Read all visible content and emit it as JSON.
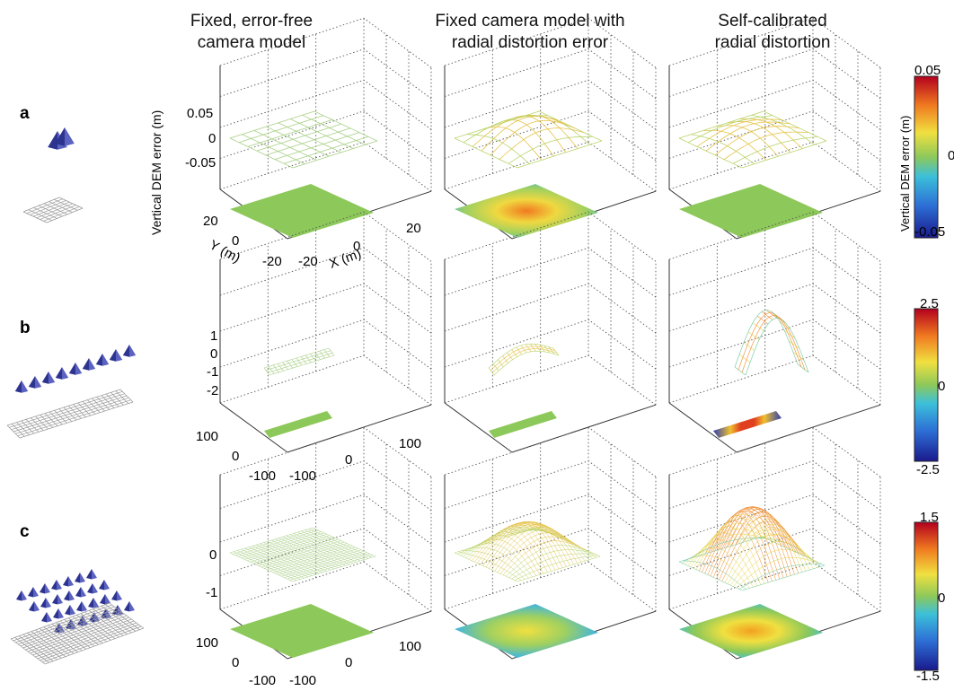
{
  "columns": [
    {
      "line1": "Fixed, error-free",
      "line2": "camera model"
    },
    {
      "line1": "Fixed camera model with",
      "line2": "radial distortion error"
    },
    {
      "line1": "Self-calibrated",
      "line2": "radial distortion"
    }
  ],
  "rows": [
    {
      "label": "a",
      "z_ticks": [
        "0.05",
        "0",
        "-0.05"
      ],
      "y_ticks": [
        "20",
        "0",
        "-20"
      ],
      "x_ticks": [
        "-20",
        "0",
        "20"
      ],
      "colorbar": {
        "max": "0.05",
        "mid": "0",
        "min": "-0.05"
      }
    },
    {
      "label": "b",
      "z_ticks": [
        "1",
        "0",
        "-1",
        "-2"
      ],
      "y_ticks": [
        "100",
        "0",
        "-100"
      ],
      "x_ticks": [
        "-100",
        "0",
        "100"
      ],
      "colorbar": {
        "max": "2.5",
        "mid": "0",
        "min": "-2.5"
      }
    },
    {
      "label": "c",
      "z_ticks": [
        "0",
        "-1"
      ],
      "y_ticks": [
        "100",
        "0",
        "-100"
      ],
      "x_ticks": [
        "-100",
        "0",
        "100"
      ],
      "colorbar": {
        "max": "1.5",
        "mid": "0",
        "min": "-1.5"
      }
    }
  ],
  "axis_labels": {
    "z": "Vertical DEM error (m)",
    "y": "Y (m)",
    "x": "X (m)",
    "colorbar": "Vertical DEM error (m)"
  },
  "colors": {
    "low": "#1a1a8c",
    "high": "#b3001e",
    "flat": "#8dc85a",
    "camera": "#3a3fa0"
  }
}
